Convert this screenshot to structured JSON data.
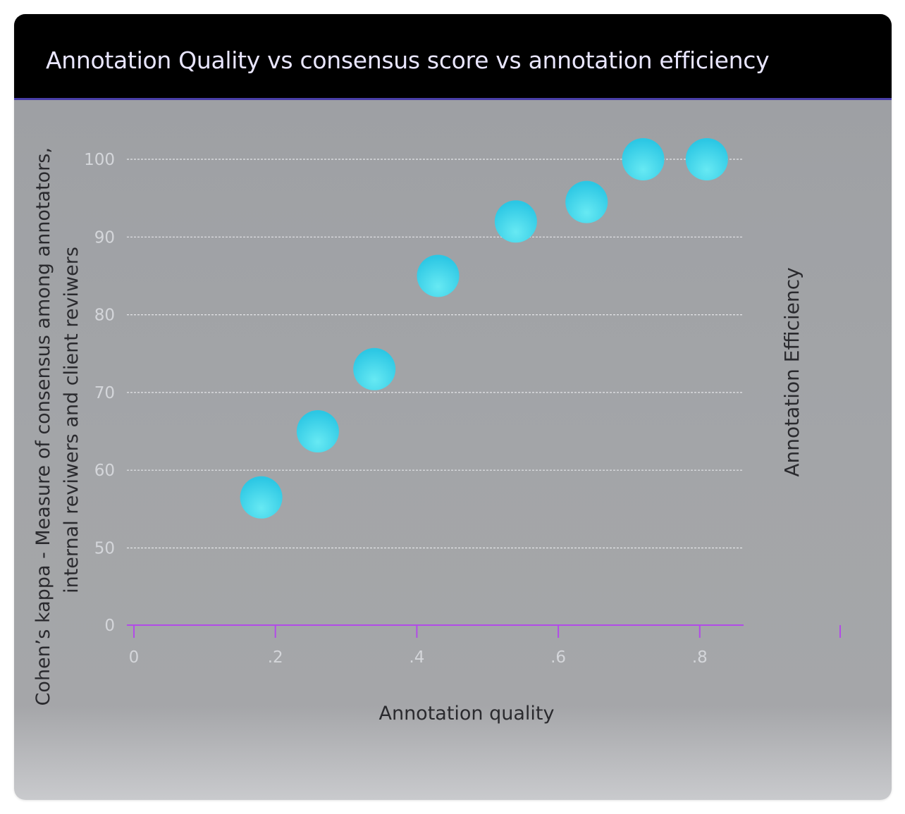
{
  "chart_data": {
    "type": "scatter",
    "title": "Annotation Quality vs consensus score vs annotation efficiency",
    "xlabel": "Annotation quality",
    "ylabel_lines": [
      "Cohen’s kappa - Measure of consensus among annotators,",
      "internal reviwers and client reviwers"
    ],
    "y2label": "Annotation Efficiency",
    "xlim": [
      0,
      0.87
    ],
    "ylim": [
      0,
      100
    ],
    "x_ticks": [
      {
        "value": 0,
        "label": "0"
      },
      {
        "value": 0.2,
        "label": ".2"
      },
      {
        "value": 0.4,
        "label": ".4"
      },
      {
        "value": 0.6,
        "label": ".6"
      },
      {
        "value": 0.8,
        "label": ".8"
      }
    ],
    "y_ticks": [
      {
        "value": 0,
        "label": "0"
      },
      {
        "value": 50,
        "label": "50"
      },
      {
        "value": 60,
        "label": "60"
      },
      {
        "value": 70,
        "label": "70"
      },
      {
        "value": 80,
        "label": "80"
      },
      {
        "value": 90,
        "label": "90"
      },
      {
        "value": 100,
        "label": "100"
      }
    ],
    "grid": true,
    "points": [
      {
        "x": 0.18,
        "y": 56.5
      },
      {
        "x": 0.26,
        "y": 65
      },
      {
        "x": 0.34,
        "y": 73
      },
      {
        "x": 0.43,
        "y": 85
      },
      {
        "x": 0.54,
        "y": 92
      },
      {
        "x": 0.64,
        "y": 94.5
      },
      {
        "x": 0.72,
        "y": 100
      },
      {
        "x": 0.81,
        "y": 100
      }
    ],
    "colors": {
      "marker_light": "#67e9f3",
      "marker_dark": "#2cc7e4",
      "grid": "#e8e9ec",
      "axis": "#b24be8"
    }
  }
}
